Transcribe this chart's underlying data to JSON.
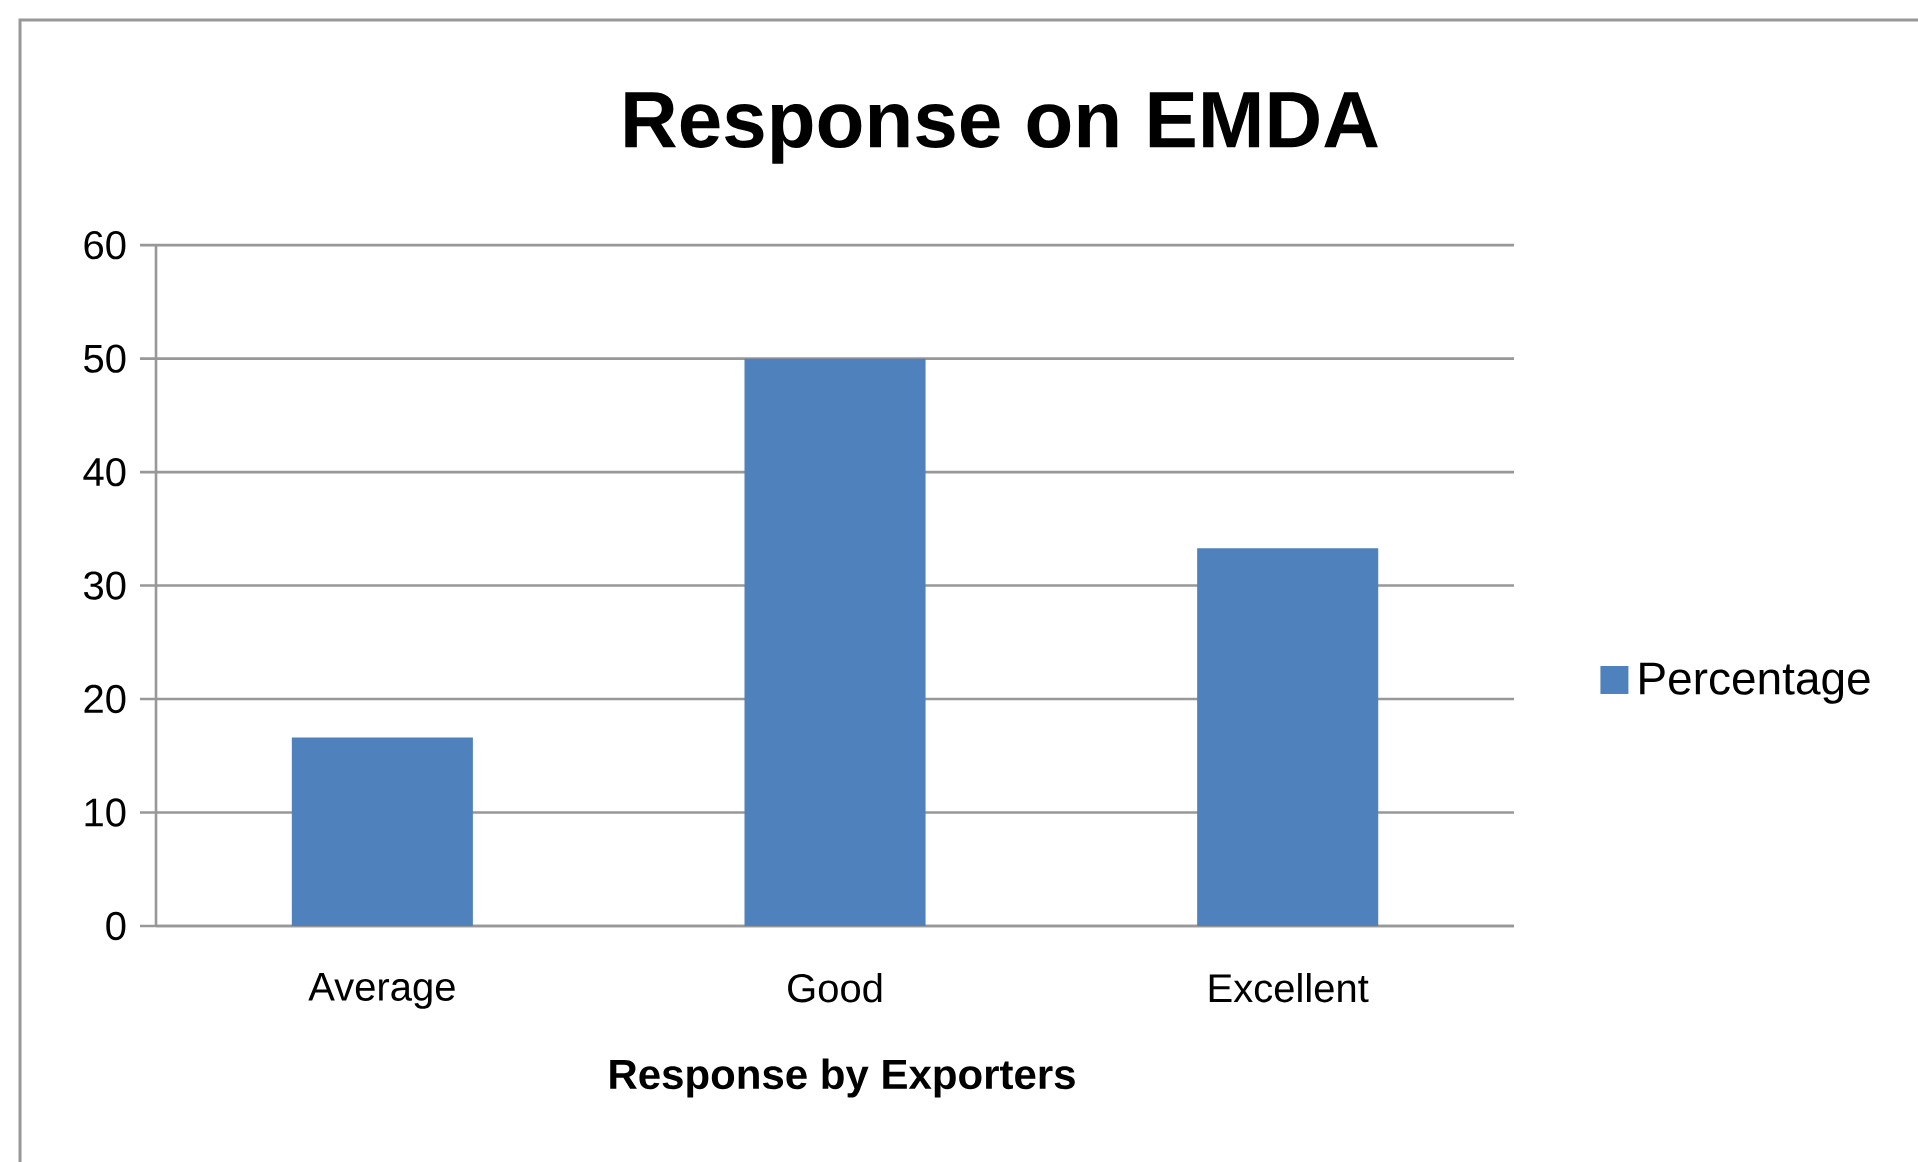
{
  "chart_data": {
    "type": "bar",
    "title": "Response on EMDA",
    "xlabel": "Response by Exporters",
    "categories": [
      "Average",
      "Good",
      "Excellent"
    ],
    "series": [
      {
        "name": "Percentage",
        "color": "#4f81bd",
        "values": [
          16.6,
          50,
          33.3
        ]
      }
    ],
    "ylim": [
      0,
      60
    ],
    "yticks": [
      0,
      10,
      20,
      30,
      40,
      50,
      60
    ],
    "grid": "y",
    "legend": "right"
  }
}
